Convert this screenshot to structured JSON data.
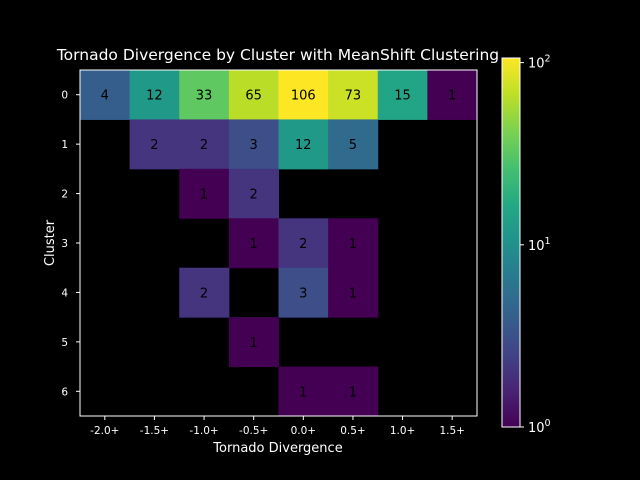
{
  "chart_data": {
    "type": "heatmap",
    "title": "Tornado Divergence by Cluster with MeanShift Clustering",
    "xlabel": "Tornado Divergence",
    "ylabel": "Cluster",
    "x_categories": [
      "-2.0+",
      "-1.5+",
      "-1.0+",
      "-0.5+",
      "0.0+",
      "0.5+",
      "1.0+",
      "1.5+"
    ],
    "y_categories": [
      "0",
      "1",
      "2",
      "3",
      "4",
      "5",
      "6"
    ],
    "values": [
      [
        4,
        12,
        33,
        65,
        106,
        73,
        15,
        1
      ],
      [
        null,
        2,
        2,
        3,
        12,
        5,
        null,
        null
      ],
      [
        null,
        null,
        1,
        2,
        null,
        null,
        null,
        null
      ],
      [
        null,
        null,
        null,
        1,
        2,
        1,
        null,
        null
      ],
      [
        null,
        null,
        2,
        null,
        3,
        1,
        null,
        null
      ],
      [
        null,
        null,
        null,
        1,
        null,
        null,
        null,
        null
      ],
      [
        null,
        null,
        null,
        null,
        1,
        1,
        null,
        null
      ]
    ],
    "color_scale": "log",
    "colormap": "viridis",
    "vmin": 1,
    "vmax": 106,
    "colorbar_ticks": [
      {
        "value": 1,
        "base": "10",
        "exp": "0"
      },
      {
        "value": 10,
        "base": "10",
        "exp": "1"
      },
      {
        "value": 100,
        "base": "10",
        "exp": "2"
      }
    ],
    "background": "#000000"
  }
}
